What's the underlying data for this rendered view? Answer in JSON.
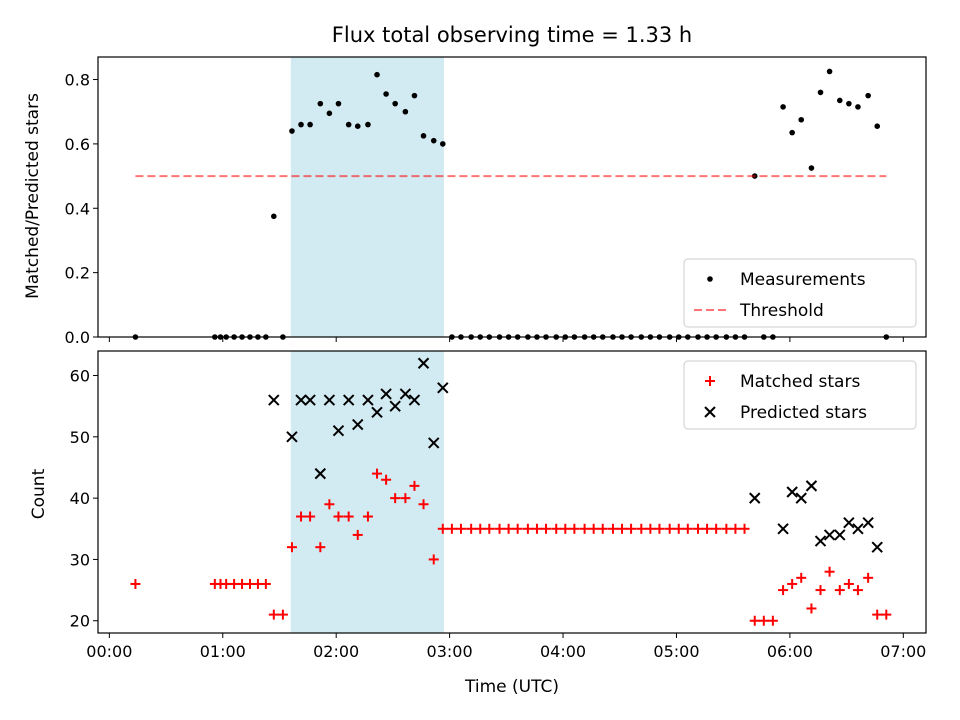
{
  "chart_data": {
    "title": "Flux total observing time = 1.33 h",
    "xlabel": "Time (UTC)",
    "x_unit": "hours UTC",
    "xlim": [
      -0.1,
      7.2
    ],
    "x_ticks": [
      {
        "value": 0,
        "label": "00:00"
      },
      {
        "value": 1,
        "label": "01:00"
      },
      {
        "value": 2,
        "label": "02:00"
      },
      {
        "value": 3,
        "label": "03:00"
      },
      {
        "value": 4,
        "label": "04:00"
      },
      {
        "value": 5,
        "label": "05:00"
      },
      {
        "value": 6,
        "label": "06:00"
      },
      {
        "value": 7,
        "label": "07:00"
      }
    ],
    "shaded_span": {
      "x0": 1.6,
      "x1": 2.95,
      "color": "#add8e6"
    },
    "panels": [
      {
        "type": "scatter",
        "ylabel": "Matched/Predicted stars",
        "ylim": [
          0,
          0.87
        ],
        "yticks": [
          "0.0",
          "0.2",
          "0.4",
          "0.6",
          "0.8"
        ],
        "ytick_values": [
          0,
          0.2,
          0.4,
          0.6,
          0.8
        ],
        "grid": false,
        "legend_position": "lower-right",
        "series": [
          {
            "name": "Measurements",
            "marker": "dot",
            "color": "#000000",
            "x": [
              0.23,
              0.93,
              0.98,
              1.03,
              1.1,
              1.17,
              1.24,
              1.31,
              1.38,
              1.45,
              1.53,
              1.61,
              1.69,
              1.77,
              1.86,
              1.94,
              2.02,
              2.11,
              2.19,
              2.28,
              2.36,
              2.44,
              2.52,
              2.61,
              2.69,
              2.77,
              2.86,
              2.94,
              3.02,
              3.1,
              3.19,
              3.27,
              3.35,
              3.44,
              3.52,
              3.6,
              3.69,
              3.77,
              3.85,
              3.94,
              4.02,
              4.1,
              4.19,
              4.27,
              4.35,
              4.44,
              4.52,
              4.6,
              4.69,
              4.77,
              4.85,
              4.94,
              5.02,
              5.1,
              5.19,
              5.27,
              5.35,
              5.44,
              5.52,
              5.6,
              5.69,
              5.77,
              5.85,
              5.94,
              6.02,
              6.1,
              6.19,
              6.27,
              6.35,
              6.44,
              6.52,
              6.6,
              6.69,
              6.77,
              6.85
            ],
            "y": [
              0,
              0,
              0,
              0,
              0,
              0,
              0,
              0,
              0,
              0.375,
              0,
              0.64,
              0.66,
              0.66,
              0.725,
              0.695,
              0.725,
              0.66,
              0.655,
              0.66,
              0.815,
              0.755,
              0.725,
              0.7,
              0.75,
              0.625,
              0.61,
              0.6,
              0,
              0,
              0,
              0,
              0,
              0,
              0,
              0,
              0,
              0,
              0,
              0,
              0,
              0,
              0,
              0,
              0,
              0,
              0,
              0,
              0,
              0,
              0,
              0,
              0,
              0,
              0,
              0,
              0,
              0,
              0,
              0,
              0.5,
              0,
              0,
              0.715,
              0.635,
              0.675,
              0.525,
              0.76,
              0.825,
              0.735,
              0.725,
              0.715,
              0.75,
              0.655,
              0
            ]
          },
          {
            "name": "Threshold",
            "type": "hline",
            "style": "dashed",
            "color": "#ff0000",
            "value": 0.5,
            "x_range": [
              0.23,
              6.85
            ]
          }
        ]
      },
      {
        "type": "scatter",
        "ylabel": "Count",
        "ylim": [
          18,
          64
        ],
        "yticks": [
          "20",
          "30",
          "40",
          "50",
          "60"
        ],
        "ytick_values": [
          20,
          30,
          40,
          50,
          60
        ],
        "grid": false,
        "legend_position": "upper-right",
        "series": [
          {
            "name": "Matched stars",
            "marker": "plus",
            "color": "#ff0000",
            "x": [
              0.23,
              0.93,
              0.98,
              1.03,
              1.1,
              1.17,
              1.24,
              1.31,
              1.38,
              1.45,
              1.53,
              1.61,
              1.69,
              1.77,
              1.86,
              1.94,
              2.02,
              2.11,
              2.19,
              2.28,
              2.36,
              2.44,
              2.52,
              2.61,
              2.69,
              2.77,
              2.86,
              2.94,
              3.02,
              3.1,
              3.19,
              3.27,
              3.35,
              3.44,
              3.52,
              3.6,
              3.69,
              3.77,
              3.85,
              3.94,
              4.02,
              4.1,
              4.19,
              4.27,
              4.35,
              4.44,
              4.52,
              4.6,
              4.69,
              4.77,
              4.85,
              4.94,
              5.02,
              5.1,
              5.19,
              5.27,
              5.35,
              5.44,
              5.52,
              5.6,
              5.69,
              5.77,
              5.85,
              5.94,
              6.02,
              6.1,
              6.19,
              6.27,
              6.35,
              6.44,
              6.52,
              6.6,
              6.69,
              6.77,
              6.85
            ],
            "y": [
              26,
              26,
              26,
              26,
              26,
              26,
              26,
              26,
              26,
              21,
              21,
              32,
              37,
              37,
              32,
              39,
              37,
              37,
              34,
              37,
              44,
              43,
              40,
              40,
              42,
              39,
              30,
              35,
              35,
              35,
              35,
              35,
              35,
              35,
              35,
              35,
              35,
              35,
              35,
              35,
              35,
              35,
              35,
              35,
              35,
              35,
              35,
              35,
              35,
              35,
              35,
              35,
              35,
              35,
              35,
              35,
              35,
              35,
              35,
              35,
              20,
              20,
              20,
              25,
              26,
              27,
              22,
              25,
              28,
              25,
              26,
              25,
              27,
              21,
              21
            ]
          },
          {
            "name": "Predicted stars",
            "marker": "x",
            "color": "#000000",
            "x": [
              1.45,
              1.61,
              1.69,
              1.77,
              1.86,
              1.94,
              2.02,
              2.11,
              2.19,
              2.28,
              2.36,
              2.44,
              2.52,
              2.61,
              2.69,
              2.77,
              2.86,
              2.94,
              5.69,
              5.94,
              6.02,
              6.1,
              6.19,
              6.27,
              6.35,
              6.44,
              6.52,
              6.6,
              6.69,
              6.77
            ],
            "y": [
              56,
              50,
              56,
              56,
              44,
              56,
              51,
              56,
              52,
              56,
              54,
              57,
              55,
              57,
              56,
              62,
              49,
              58,
              40,
              35,
              41,
              40,
              42,
              33,
              34,
              34,
              36,
              35,
              36,
              32
            ]
          }
        ]
      }
    ]
  }
}
